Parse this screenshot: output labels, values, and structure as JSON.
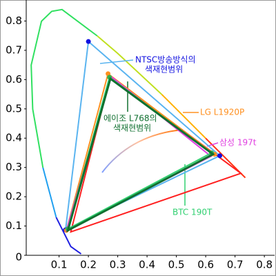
{
  "chart_data": {
    "type": "line",
    "xlim": [
      -0.012,
      0.835
    ],
    "ylim": [
      0,
      0.86
    ],
    "xticks": [
      0.1,
      0.2,
      0.3,
      0.4,
      0.5,
      0.6,
      0.7,
      0.8
    ],
    "yticks": [
      0,
      0.1,
      0.2,
      0.3,
      0.4,
      0.5,
      0.6,
      0.7,
      0.8
    ],
    "series": [
      {
        "color": "#ff2020",
        "x": [
          0.275,
          0.72,
          0.14
        ],
        "y": [
          0.61,
          0.28,
          0.08
        ]
      },
      {
        "name": "NTSC",
        "color": "#5ab4f0",
        "marker_color": "#1010e0",
        "markers": true,
        "x": [
          0.2,
          0.648,
          0.122
        ],
        "y": [
          0.73,
          0.34,
          0.087
        ]
      },
      {
        "name": "LG L1920P",
        "color": "#ff9020",
        "marker_color": "#ff9020",
        "markers": true,
        "x": [
          0.267,
          0.63,
          0.125
        ],
        "y": [
          0.62,
          0.345,
          0.085
        ]
      },
      {
        "name": "삼성 197t",
        "color": "#e040e0",
        "x": [
          0.278,
          0.618,
          0.125
        ],
        "y": [
          0.61,
          0.338,
          0.085
        ]
      },
      {
        "name": "BTC 190T",
        "color": "#30d070",
        "marker_color": "#30b050",
        "markers": true,
        "x": [
          0.272,
          0.62,
          0.13
        ],
        "y": [
          0.608,
          0.35,
          0.09
        ]
      },
      {
        "name": "에이조 L768",
        "color": "#107030",
        "x": [
          0.275,
          0.625,
          0.13
        ],
        "y": [
          0.603,
          0.345,
          0.085
        ]
      }
    ],
    "annotations": [
      {
        "lines": [
          "NTSC방송방식의",
          "색재현범위"
        ],
        "color": "#1010e0"
      },
      {
        "lines": [
          "LG L1920P"
        ],
        "color": "#ff9020"
      },
      {
        "lines": [
          "에이조 L768의",
          "색재현범위"
        ],
        "color": "#107030"
      },
      {
        "lines": [
          "삼성 197t"
        ],
        "color": "#e040e0"
      },
      {
        "lines": [
          "BTC 190T"
        ],
        "color": "#30d070"
      }
    ]
  }
}
